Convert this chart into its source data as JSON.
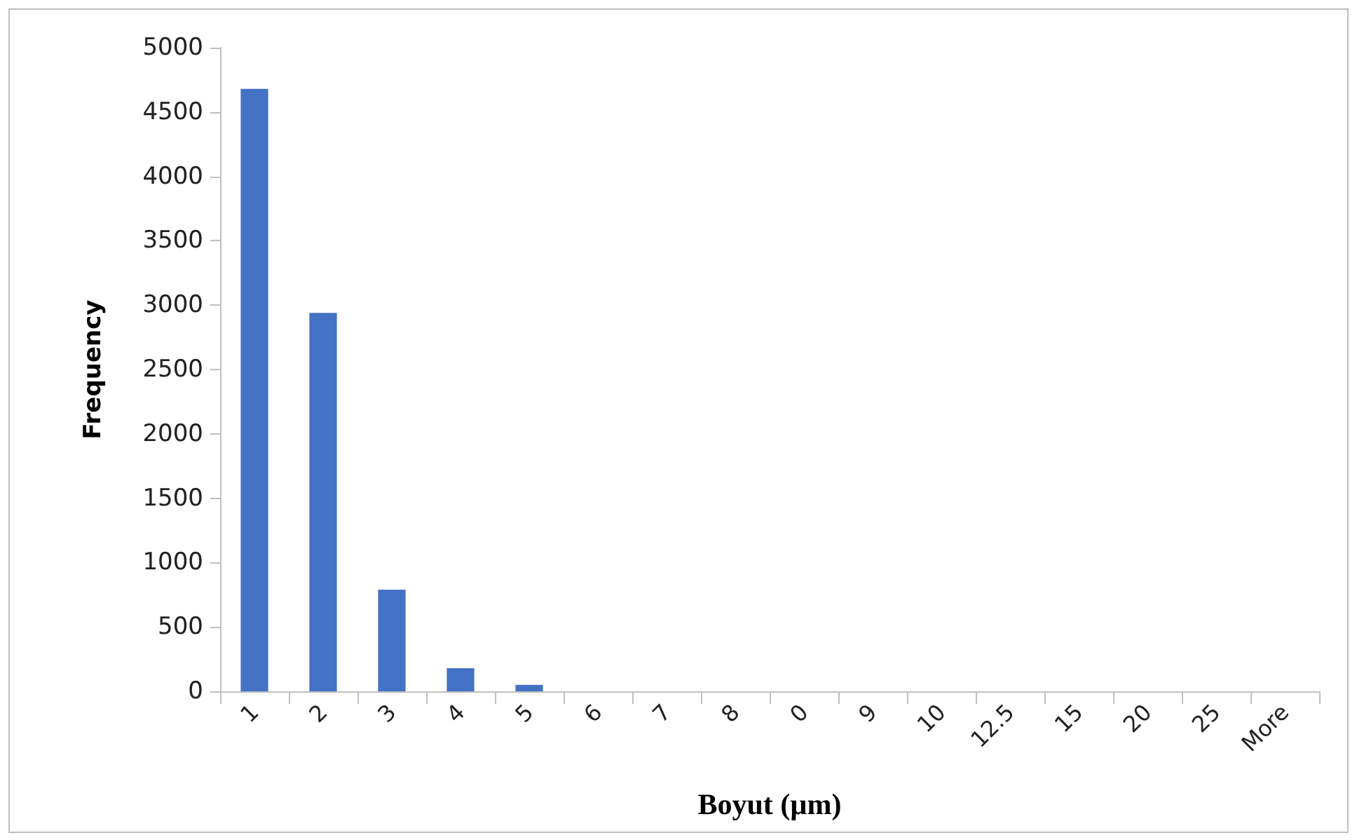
{
  "chart_data": {
    "type": "bar",
    "xlabel": "Boyut (µm)",
    "ylabel": "Frequency",
    "categories": [
      "1",
      "2",
      "3",
      "4",
      "5",
      "6",
      "7",
      "8",
      "0",
      "9",
      "10",
      "12.5",
      "15",
      "20",
      "25",
      "More"
    ],
    "values": [
      4680,
      2940,
      790,
      180,
      50,
      0,
      0,
      0,
      0,
      0,
      0,
      0,
      0,
      0,
      0,
      0
    ],
    "color": "#4472c4",
    "ylim": [
      0,
      5000
    ],
    "yticks": [
      0,
      500,
      1000,
      1500,
      2000,
      2500,
      3000,
      3500,
      4000,
      4500,
      5000
    ],
    "grid": false
  }
}
